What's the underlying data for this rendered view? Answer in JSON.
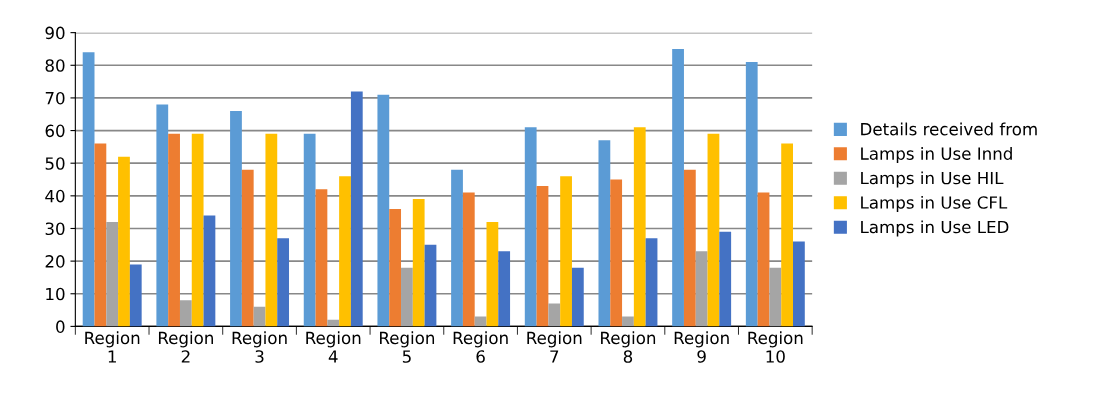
{
  "chart_data": {
    "type": "bar",
    "categories": [
      "Region\n1",
      "Region\n2",
      "Region\n3",
      "Region\n4",
      "Region\n5",
      "Region\n6",
      "Region\n7",
      "Region\n8",
      "Region\n9",
      "Region\n10"
    ],
    "series": [
      {
        "name": "Details received from",
        "color": "#5b9bd5",
        "values": [
          84,
          68,
          66,
          59,
          71,
          48,
          61,
          57,
          85,
          81
        ]
      },
      {
        "name": "Lamps in Use Innd",
        "color": "#ed7d31",
        "values": [
          56,
          59,
          48,
          42,
          36,
          41,
          43,
          45,
          48,
          41
        ]
      },
      {
        "name": "Lamps in Use HIL",
        "color": "#a5a5a5",
        "values": [
          32,
          8,
          6,
          2,
          18,
          3,
          7,
          3,
          23,
          18
        ]
      },
      {
        "name": "Lamps in Use CFL",
        "color": "#ffc000",
        "values": [
          52,
          59,
          59,
          46,
          39,
          32,
          46,
          61,
          59,
          56
        ]
      },
      {
        "name": "Lamps in Use LED",
        "color": "#4472c4",
        "values": [
          19,
          34,
          27,
          72,
          25,
          23,
          18,
          27,
          29,
          26
        ]
      }
    ],
    "ylim": [
      0,
      90
    ],
    "yticks": [
      0,
      10,
      20,
      30,
      40,
      50,
      60,
      70,
      80,
      90
    ],
    "grid": "y",
    "legend": "right"
  }
}
